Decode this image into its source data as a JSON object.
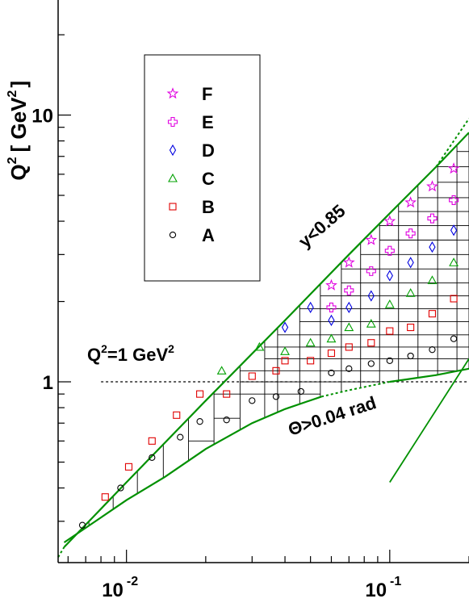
{
  "chart_data": {
    "type": "scatter",
    "title": "",
    "ylabel_base": "Q",
    "ylabel_exp": "2",
    "ylabel_unit_open": "[ GeV",
    "ylabel_unit_exp": "2",
    "ylabel_unit_close": "]",
    "x_scale": "log",
    "y_scale": "log",
    "xlim": [
      0.0055,
      0.2
    ],
    "ylim": [
      0.21,
      27
    ],
    "x_ticks": [
      {
        "value": 0.01,
        "base": "10",
        "exp": "-2"
      },
      {
        "value": 0.1,
        "base": "10",
        "exp": "-1"
      }
    ],
    "y_ticks": [
      {
        "value": 1,
        "label": "1"
      },
      {
        "value": 10,
        "label": "10"
      }
    ],
    "legend_position": "top-left",
    "series": [
      {
        "name": "F",
        "marker": "star",
        "color": "#e000e0",
        "points": [
          [
            0.06,
            2.3
          ],
          [
            0.07,
            2.8
          ],
          [
            0.085,
            3.4
          ],
          [
            0.1,
            4.0
          ],
          [
            0.12,
            4.7
          ],
          [
            0.145,
            5.4
          ],
          [
            0.175,
            6.3
          ]
        ]
      },
      {
        "name": "E",
        "marker": "cross",
        "color": "#e000e0",
        "points": [
          [
            0.06,
            1.9
          ],
          [
            0.07,
            2.2
          ],
          [
            0.085,
            2.6
          ],
          [
            0.1,
            3.1
          ],
          [
            0.12,
            3.6
          ],
          [
            0.145,
            4.1
          ],
          [
            0.175,
            4.8
          ]
        ]
      },
      {
        "name": "D",
        "marker": "diamond",
        "color": "#0000e0",
        "points": [
          [
            0.04,
            1.6
          ],
          [
            0.05,
            1.9
          ],
          [
            0.06,
            1.7
          ],
          [
            0.07,
            1.9
          ],
          [
            0.085,
            2.1
          ],
          [
            0.1,
            2.5
          ],
          [
            0.12,
            2.8
          ],
          [
            0.145,
            3.2
          ],
          [
            0.175,
            3.7
          ]
        ]
      },
      {
        "name": "C",
        "marker": "triangle",
        "color": "#00a000",
        "points": [
          [
            0.023,
            1.1
          ],
          [
            0.032,
            1.35
          ],
          [
            0.04,
            1.3
          ],
          [
            0.05,
            1.4
          ],
          [
            0.06,
            1.45
          ],
          [
            0.07,
            1.6
          ],
          [
            0.085,
            1.65
          ],
          [
            0.1,
            1.95
          ],
          [
            0.12,
            2.15
          ],
          [
            0.145,
            2.4
          ],
          [
            0.175,
            2.8
          ]
        ]
      },
      {
        "name": "B",
        "marker": "square",
        "color": "#e00000",
        "points": [
          [
            0.0083,
            0.37
          ],
          [
            0.0102,
            0.48
          ],
          [
            0.0125,
            0.6
          ],
          [
            0.0155,
            0.75
          ],
          [
            0.019,
            0.9
          ],
          [
            0.024,
            0.9
          ],
          [
            0.03,
            1.05
          ],
          [
            0.037,
            1.1
          ],
          [
            0.04,
            1.2
          ],
          [
            0.05,
            1.2
          ],
          [
            0.06,
            1.28
          ],
          [
            0.07,
            1.35
          ],
          [
            0.085,
            1.4
          ],
          [
            0.1,
            1.55
          ],
          [
            0.12,
            1.6
          ],
          [
            0.145,
            1.8
          ],
          [
            0.175,
            2.05
          ]
        ]
      },
      {
        "name": "A",
        "marker": "circle",
        "color": "#000000",
        "points": [
          [
            0.0068,
            0.29
          ],
          [
            0.0095,
            0.4
          ],
          [
            0.0125,
            0.52
          ],
          [
            0.016,
            0.62
          ],
          [
            0.019,
            0.71
          ],
          [
            0.024,
            0.72
          ],
          [
            0.03,
            0.85
          ],
          [
            0.037,
            0.88
          ],
          [
            0.046,
            0.92
          ],
          [
            0.06,
            1.08
          ],
          [
            0.07,
            1.12
          ],
          [
            0.085,
            1.17
          ],
          [
            0.1,
            1.2
          ],
          [
            0.12,
            1.25
          ],
          [
            0.145,
            1.32
          ],
          [
            0.175,
            1.45
          ]
        ]
      }
    ],
    "boundaries": {
      "upper_cut_label": "y<0.85",
      "upper_cut": [
        [
          0.0058,
          0.24
        ],
        [
          0.01,
          0.42
        ],
        [
          0.02,
          0.85
        ],
        [
          0.04,
          1.7
        ],
        [
          0.07,
          3.0
        ],
        [
          0.1,
          4.28
        ],
        [
          0.15,
          6.4
        ],
        [
          0.2,
          8.6
        ]
      ],
      "upper_cut_dotted": [
        [
          0.0055,
          0.22
        ],
        [
          0.0058,
          0.24
        ]
      ],
      "upper_cut_dotted_hi": [
        [
          0.15,
          6.4
        ],
        [
          0.2,
          9.7
        ]
      ],
      "theta_cut_label": "Θ>0.04 rad",
      "theta_cut": [
        [
          0.0058,
          0.25
        ],
        [
          0.008,
          0.31
        ],
        [
          0.01,
          0.36
        ],
        [
          0.014,
          0.44
        ],
        [
          0.02,
          0.56
        ],
        [
          0.03,
          0.7
        ],
        [
          0.04,
          0.79
        ],
        [
          0.055,
          0.88
        ]
      ],
      "theta_cut_dotted": [
        [
          0.055,
          0.88
        ],
        [
          0.07,
          0.93
        ],
        [
          0.1,
          1.0
        ]
      ],
      "theta_cut_hi": [
        [
          0.1,
          1.0
        ],
        [
          0.15,
          1.06
        ],
        [
          0.2,
          1.12
        ]
      ],
      "q2_line_label_base": "Q",
      "q2_line_label_exp": "2",
      "q2_line_label_rest": "=1 GeV",
      "q2_line_label_exp2": "2",
      "q2_line": [
        [
          0.008,
          1.0
        ],
        [
          0.2,
          1.0
        ]
      ],
      "steep_line": [
        [
          0.1,
          0.42
        ],
        [
          0.2,
          1.22
        ]
      ]
    }
  }
}
